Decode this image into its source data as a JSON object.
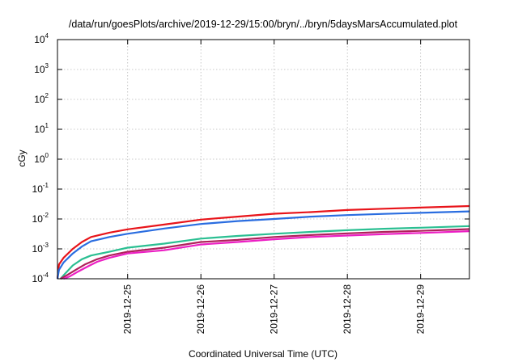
{
  "chart_data": {
    "type": "line",
    "title": "/data/run/goesPlots/archive/2019-12-29/15:00/bryn/../bryn/5daysMarsAccumulated.plot",
    "xlabel": "Coordinated Universal Time (UTC)",
    "ylabel": "cGy",
    "y_scale": "log",
    "ylim": [
      0.0001,
      10000
    ],
    "y_ticks": [
      {
        "value": 0.0001,
        "base": "10",
        "exp": "-4"
      },
      {
        "value": 0.001,
        "base": "10",
        "exp": "-3"
      },
      {
        "value": 0.01,
        "base": "10",
        "exp": "-2"
      },
      {
        "value": 0.1,
        "base": "10",
        "exp": "-1"
      },
      {
        "value": 1,
        "base": "10",
        "exp": "0"
      },
      {
        "value": 10,
        "base": "10",
        "exp": "1"
      },
      {
        "value": 100,
        "base": "10",
        "exp": "2"
      },
      {
        "value": 1000,
        "base": "10",
        "exp": "3"
      },
      {
        "value": 10000,
        "base": "10",
        "exp": "4"
      }
    ],
    "xlim": [
      "2019-12-24T01:00",
      "2019-12-29T16:00"
    ],
    "x_ticks": [
      "2019-12-25",
      "2019-12-26",
      "2019-12-27",
      "2019-12-28",
      "2019-12-29"
    ],
    "grid": true,
    "legend": "none",
    "series": [
      {
        "color": "#e8141a",
        "points": [
          [
            "2019-12-24T01:00",
            9e-05
          ],
          [
            "2019-12-24T01:30",
            0.0003
          ],
          [
            "2019-12-24T03:00",
            0.0005
          ],
          [
            "2019-12-24T06:00",
            0.001
          ],
          [
            "2019-12-24T09:00",
            0.0017
          ],
          [
            "2019-12-24T12:00",
            0.0025
          ],
          [
            "2019-12-24T18:00",
            0.0035
          ],
          [
            "2019-12-25T00:00",
            0.0045
          ],
          [
            "2019-12-25T12:00",
            0.0065
          ],
          [
            "2019-12-26T00:00",
            0.0095
          ],
          [
            "2019-12-26T12:00",
            0.012
          ],
          [
            "2019-12-27T00:00",
            0.015
          ],
          [
            "2019-12-27T12:00",
            0.017
          ],
          [
            "2019-12-28T00:00",
            0.02
          ],
          [
            "2019-12-28T12:00",
            0.022
          ],
          [
            "2019-12-29T00:00",
            0.024
          ],
          [
            "2019-12-29T16:00",
            0.027
          ]
        ]
      },
      {
        "color": "#2a6de0",
        "points": [
          [
            "2019-12-24T01:00",
            7e-05
          ],
          [
            "2019-12-24T01:30",
            0.0002
          ],
          [
            "2019-12-24T03:00",
            0.00035
          ],
          [
            "2019-12-24T06:00",
            0.0007
          ],
          [
            "2019-12-24T09:00",
            0.0012
          ],
          [
            "2019-12-24T12:00",
            0.0018
          ],
          [
            "2019-12-24T18:00",
            0.0025
          ],
          [
            "2019-12-25T00:00",
            0.0032
          ],
          [
            "2019-12-25T12:00",
            0.0048
          ],
          [
            "2019-12-26T00:00",
            0.0068
          ],
          [
            "2019-12-26T12:00",
            0.0085
          ],
          [
            "2019-12-27T00:00",
            0.01
          ],
          [
            "2019-12-27T12:00",
            0.012
          ],
          [
            "2019-12-28T00:00",
            0.0135
          ],
          [
            "2019-12-28T12:00",
            0.0148
          ],
          [
            "2019-12-29T00:00",
            0.016
          ],
          [
            "2019-12-29T16:00",
            0.018
          ]
        ]
      },
      {
        "color": "#2bbf92",
        "points": [
          [
            "2019-12-24T02:00",
            8e-05
          ],
          [
            "2019-12-24T03:00",
            0.00013
          ],
          [
            "2019-12-24T06:00",
            0.00028
          ],
          [
            "2019-12-24T09:00",
            0.00045
          ],
          [
            "2019-12-24T12:00",
            0.0006
          ],
          [
            "2019-12-24T18:00",
            0.0008
          ],
          [
            "2019-12-25T00:00",
            0.0011
          ],
          [
            "2019-12-25T12:00",
            0.0015
          ],
          [
            "2019-12-26T00:00",
            0.0022
          ],
          [
            "2019-12-26T12:00",
            0.0027
          ],
          [
            "2019-12-27T00:00",
            0.0032
          ],
          [
            "2019-12-27T12:00",
            0.0037
          ],
          [
            "2019-12-28T00:00",
            0.0042
          ],
          [
            "2019-12-28T12:00",
            0.0047
          ],
          [
            "2019-12-29T00:00",
            0.0051
          ],
          [
            "2019-12-29T16:00",
            0.0058
          ]
        ]
      },
      {
        "color": "#b0205a",
        "points": [
          [
            "2019-12-24T02:00",
            8e-05
          ],
          [
            "2019-12-24T04:00",
            0.00013
          ],
          [
            "2019-12-24T07:00",
            0.0002
          ],
          [
            "2019-12-24T10:00",
            0.0003
          ],
          [
            "2019-12-24T14:00",
            0.00045
          ],
          [
            "2019-12-24T18:00",
            0.0006
          ],
          [
            "2019-12-25T00:00",
            0.0008
          ],
          [
            "2019-12-25T12:00",
            0.0011
          ],
          [
            "2019-12-26T00:00",
            0.0017
          ],
          [
            "2019-12-26T12:00",
            0.002
          ],
          [
            "2019-12-27T00:00",
            0.0025
          ],
          [
            "2019-12-27T12:00",
            0.0029
          ],
          [
            "2019-12-28T00:00",
            0.0033
          ],
          [
            "2019-12-28T12:00",
            0.0037
          ],
          [
            "2019-12-29T00:00",
            0.004
          ],
          [
            "2019-12-29T16:00",
            0.0046
          ]
        ]
      },
      {
        "color": "#ec1ec4",
        "points": [
          [
            "2019-12-24T03:00",
            9e-05
          ],
          [
            "2019-12-24T05:00",
            0.00012
          ],
          [
            "2019-12-24T08:00",
            0.00018
          ],
          [
            "2019-12-24T11:00",
            0.00026
          ],
          [
            "2019-12-24T14:00",
            0.00037
          ],
          [
            "2019-12-24T18:00",
            0.0005
          ],
          [
            "2019-12-25T00:00",
            0.0007
          ],
          [
            "2019-12-25T12:00",
            0.0009
          ],
          [
            "2019-12-26T00:00",
            0.0014
          ],
          [
            "2019-12-26T12:00",
            0.0017
          ],
          [
            "2019-12-27T00:00",
            0.0021
          ],
          [
            "2019-12-27T12:00",
            0.0025
          ],
          [
            "2019-12-28T00:00",
            0.0028
          ],
          [
            "2019-12-28T12:00",
            0.0031
          ],
          [
            "2019-12-29T00:00",
            0.0034
          ],
          [
            "2019-12-29T16:00",
            0.0039
          ]
        ]
      }
    ]
  }
}
